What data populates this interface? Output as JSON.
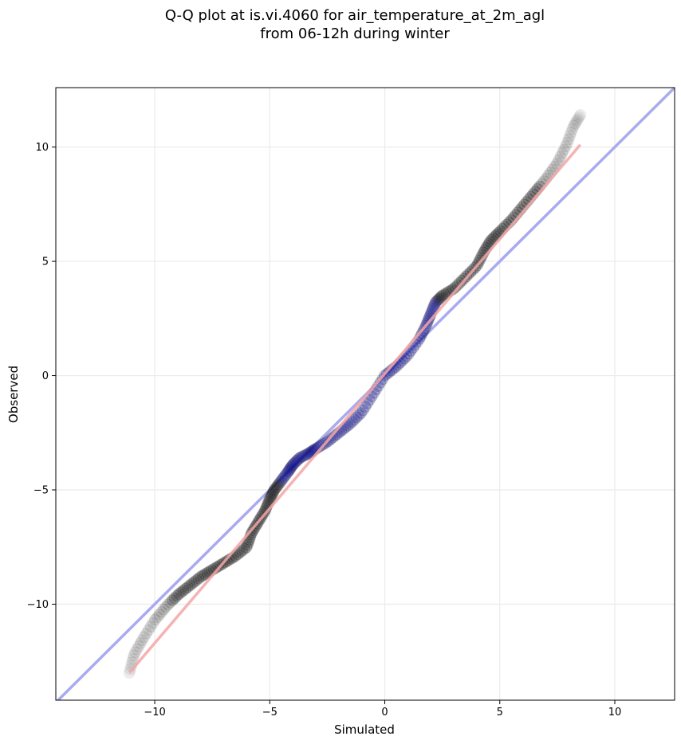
{
  "chart_data": {
    "type": "scatter",
    "title_line1": "Q-Q plot at is.vi.4060 for air_temperature_at_2m_agl",
    "title_line2": "from 06-12h during winter",
    "xlabel": "Simulated",
    "ylabel": "Observed",
    "xlim": [
      -14.3,
      12.6
    ],
    "ylim": [
      -14.2,
      12.6
    ],
    "xticks": [
      -10,
      -5,
      0,
      5,
      10
    ],
    "xtick_labels": [
      "−10",
      "−5",
      "0",
      "5",
      "10"
    ],
    "yticks": [
      -10,
      -5,
      0,
      5,
      10
    ],
    "ytick_labels": [
      "−10",
      "−5",
      "0",
      "5",
      "10"
    ],
    "grid": true,
    "quantile_curve": [
      [
        -11.1,
        -13.0
      ],
      [
        -10.9,
        -12.2
      ],
      [
        -10.5,
        -11.5
      ],
      [
        -10.0,
        -10.7
      ],
      [
        -9.5,
        -10.1
      ],
      [
        -9.0,
        -9.6
      ],
      [
        -8.5,
        -9.2
      ],
      [
        -8.0,
        -8.8
      ],
      [
        -7.5,
        -8.5
      ],
      [
        -7.0,
        -8.2
      ],
      [
        -6.5,
        -7.9
      ],
      [
        -6.0,
        -7.5
      ],
      [
        -5.8,
        -6.9
      ],
      [
        -5.5,
        -6.4
      ],
      [
        -5.2,
        -5.9
      ],
      [
        -5.0,
        -5.4
      ],
      [
        -4.8,
        -5.0
      ],
      [
        -4.5,
        -4.6
      ],
      [
        -4.2,
        -4.2
      ],
      [
        -4.0,
        -3.9
      ],
      [
        -3.7,
        -3.6
      ],
      [
        -3.3,
        -3.4
      ],
      [
        -3.0,
        -3.2
      ],
      [
        -2.5,
        -2.9
      ],
      [
        -2.0,
        -2.5
      ],
      [
        -1.5,
        -2.1
      ],
      [
        -1.0,
        -1.6
      ],
      [
        -0.5,
        -0.8
      ],
      [
        0.0,
        0.0
      ],
      [
        0.5,
        0.4
      ],
      [
        1.0,
        0.9
      ],
      [
        1.5,
        1.6
      ],
      [
        1.8,
        2.2
      ],
      [
        2.0,
        2.7
      ],
      [
        2.2,
        3.2
      ],
      [
        2.5,
        3.5
      ],
      [
        3.0,
        3.8
      ],
      [
        3.5,
        4.3
      ],
      [
        4.0,
        4.8
      ],
      [
        4.3,
        5.4
      ],
      [
        4.6,
        5.9
      ],
      [
        5.0,
        6.3
      ],
      [
        5.5,
        6.8
      ],
      [
        6.0,
        7.4
      ],
      [
        6.5,
        8.0
      ],
      [
        7.0,
        8.6
      ],
      [
        7.5,
        9.3
      ],
      [
        7.9,
        10.1
      ],
      [
        8.2,
        10.9
      ],
      [
        8.5,
        11.4
      ]
    ],
    "outer_points": 12,
    "one_to_one_line": [
      [
        -15,
        -15
      ],
      [
        13,
        13
      ]
    ],
    "fit_line": [
      [
        -11.1,
        -13.0
      ],
      [
        8.5,
        10.1
      ]
    ],
    "colors": {
      "points": "#000000",
      "one_to_one": "#aaaaee",
      "fit": "#f4a6a6",
      "center_tint": "#000088",
      "grid": "#ebebeb"
    }
  }
}
